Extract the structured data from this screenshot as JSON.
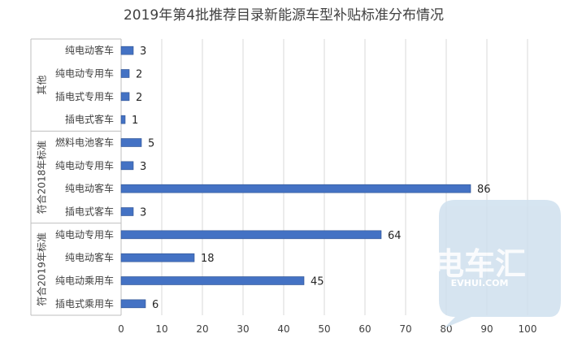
{
  "chart_data": {
    "type": "bar",
    "orientation": "horizontal",
    "title": "2019年第4批推荐目录新能源车型补贴标准分布情况",
    "xlim": [
      0,
      100
    ],
    "x_ticks": [
      "0",
      "10",
      "20",
      "30",
      "40",
      "50",
      "60",
      "70",
      "80",
      "90",
      "100"
    ],
    "grid": true,
    "groups": [
      {
        "name": "其他",
        "categories": [
          "纯电动客车",
          "纯电动专用车",
          "插电式专用车",
          "插电式客车"
        ],
        "values": [
          3,
          2,
          2,
          1
        ]
      },
      {
        "name": "符合2018年标准",
        "categories": [
          "燃料电池客车",
          "纯电动专用车",
          "纯电动客车",
          "插电式客车"
        ],
        "values": [
          5,
          3,
          86,
          3
        ]
      },
      {
        "name": "符合2019年标准",
        "categories": [
          "纯电动专用车",
          "纯电动客车",
          "纯电动乘用车",
          "插电式乘用车"
        ],
        "values": [
          64,
          18,
          45,
          6
        ]
      }
    ],
    "bar_color": "#4472C4"
  },
  "watermark": {
    "brand": "电车汇",
    "site": "EVHUI.COM"
  }
}
